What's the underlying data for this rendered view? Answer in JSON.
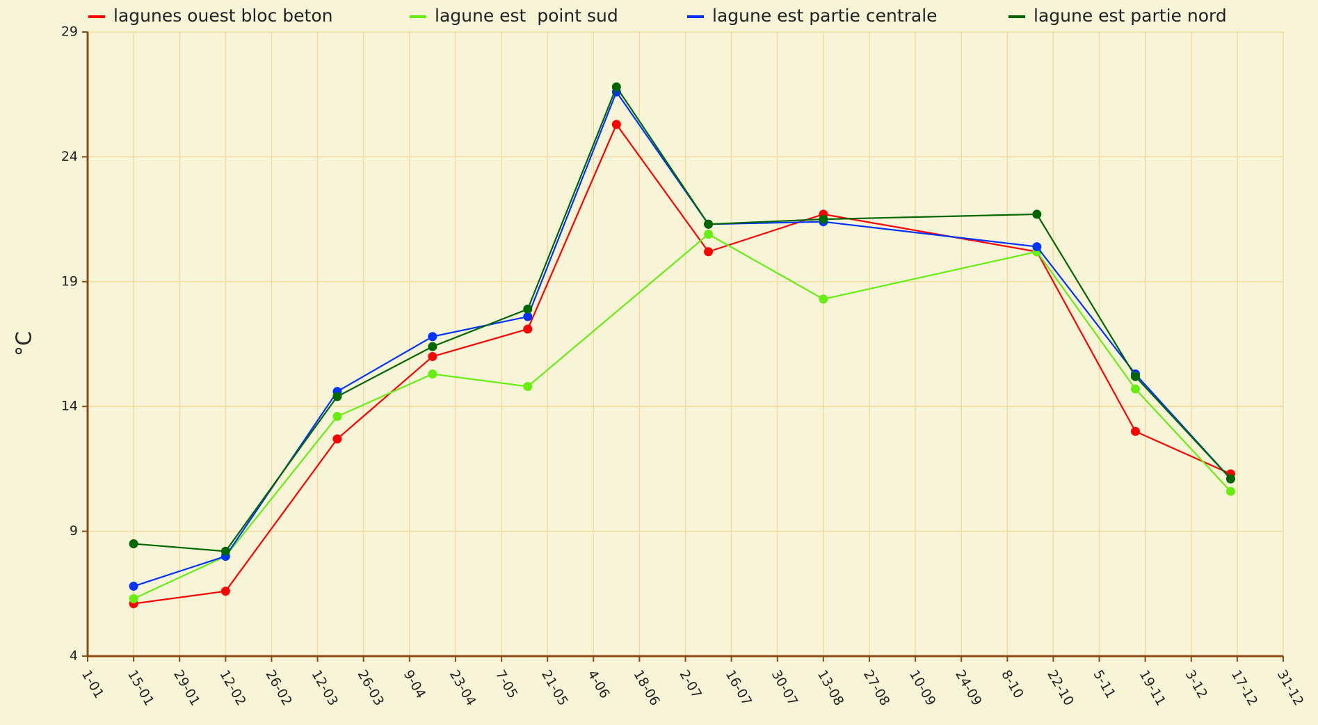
{
  "chart_data": {
    "type": "line",
    "ylabel": "°C",
    "x": [
      15,
      43,
      77,
      106,
      135,
      162,
      190,
      225,
      290,
      320,
      349
    ],
    "xlim": [
      1,
      365
    ],
    "xticks": [
      {
        "value": 1,
        "label": "1-01"
      },
      {
        "value": 15,
        "label": "15-01"
      },
      {
        "value": 29,
        "label": "29-01"
      },
      {
        "value": 43,
        "label": "12-02"
      },
      {
        "value": 57,
        "label": "26-02"
      },
      {
        "value": 71,
        "label": "12-03"
      },
      {
        "value": 85,
        "label": "26-03"
      },
      {
        "value": 99,
        "label": "9-04"
      },
      {
        "value": 113,
        "label": "23-04"
      },
      {
        "value": 127,
        "label": "7-05"
      },
      {
        "value": 141,
        "label": "21-05"
      },
      {
        "value": 155,
        "label": "4-06"
      },
      {
        "value": 169,
        "label": "18-06"
      },
      {
        "value": 183,
        "label": "2-07"
      },
      {
        "value": 197,
        "label": "16-07"
      },
      {
        "value": 211,
        "label": "30-07"
      },
      {
        "value": 225,
        "label": "13-08"
      },
      {
        "value": 239,
        "label": "27-08"
      },
      {
        "value": 253,
        "label": "10-09"
      },
      {
        "value": 267,
        "label": "24-09"
      },
      {
        "value": 281,
        "label": "8-10"
      },
      {
        "value": 295,
        "label": "22-10"
      },
      {
        "value": 309,
        "label": "5-11"
      },
      {
        "value": 323,
        "label": "19-11"
      },
      {
        "value": 337,
        "label": "3-12"
      },
      {
        "value": 351,
        "label": "17-12"
      },
      {
        "value": 365,
        "label": "31-12"
      }
    ],
    "ylim": [
      4,
      29
    ],
    "yticks": [
      4,
      9,
      14,
      19,
      24,
      29
    ],
    "grid": true,
    "legend": "top",
    "series": [
      {
        "name": "lagunes ouest bloc beton",
        "color": "#ff0000",
        "values": [
          6.1,
          6.6,
          12.7,
          16.0,
          17.1,
          25.3,
          20.2,
          21.7,
          20.2,
          13.0,
          11.3
        ]
      },
      {
        "name": "lagune est  point sud",
        "color": "#66ee11",
        "x": [
          15,
          43,
          77,
          106,
          135,
          190,
          225,
          290,
          320,
          349
        ],
        "values": [
          6.3,
          8.0,
          13.6,
          15.3,
          14.8,
          20.9,
          18.3,
          20.2,
          14.7,
          10.6
        ]
      },
      {
        "name": "lagune est partie centrale",
        "color": "#0033ff",
        "values": [
          6.8,
          8.0,
          14.6,
          16.8,
          17.6,
          26.6,
          21.3,
          21.4,
          20.4,
          15.3,
          11.1
        ]
      },
      {
        "name": "lagune est partie nord",
        "color": "#006600",
        "values": [
          8.5,
          8.2,
          14.4,
          16.4,
          17.9,
          26.8,
          21.3,
          21.5,
          21.7,
          15.2,
          11.1
        ]
      }
    ]
  }
}
